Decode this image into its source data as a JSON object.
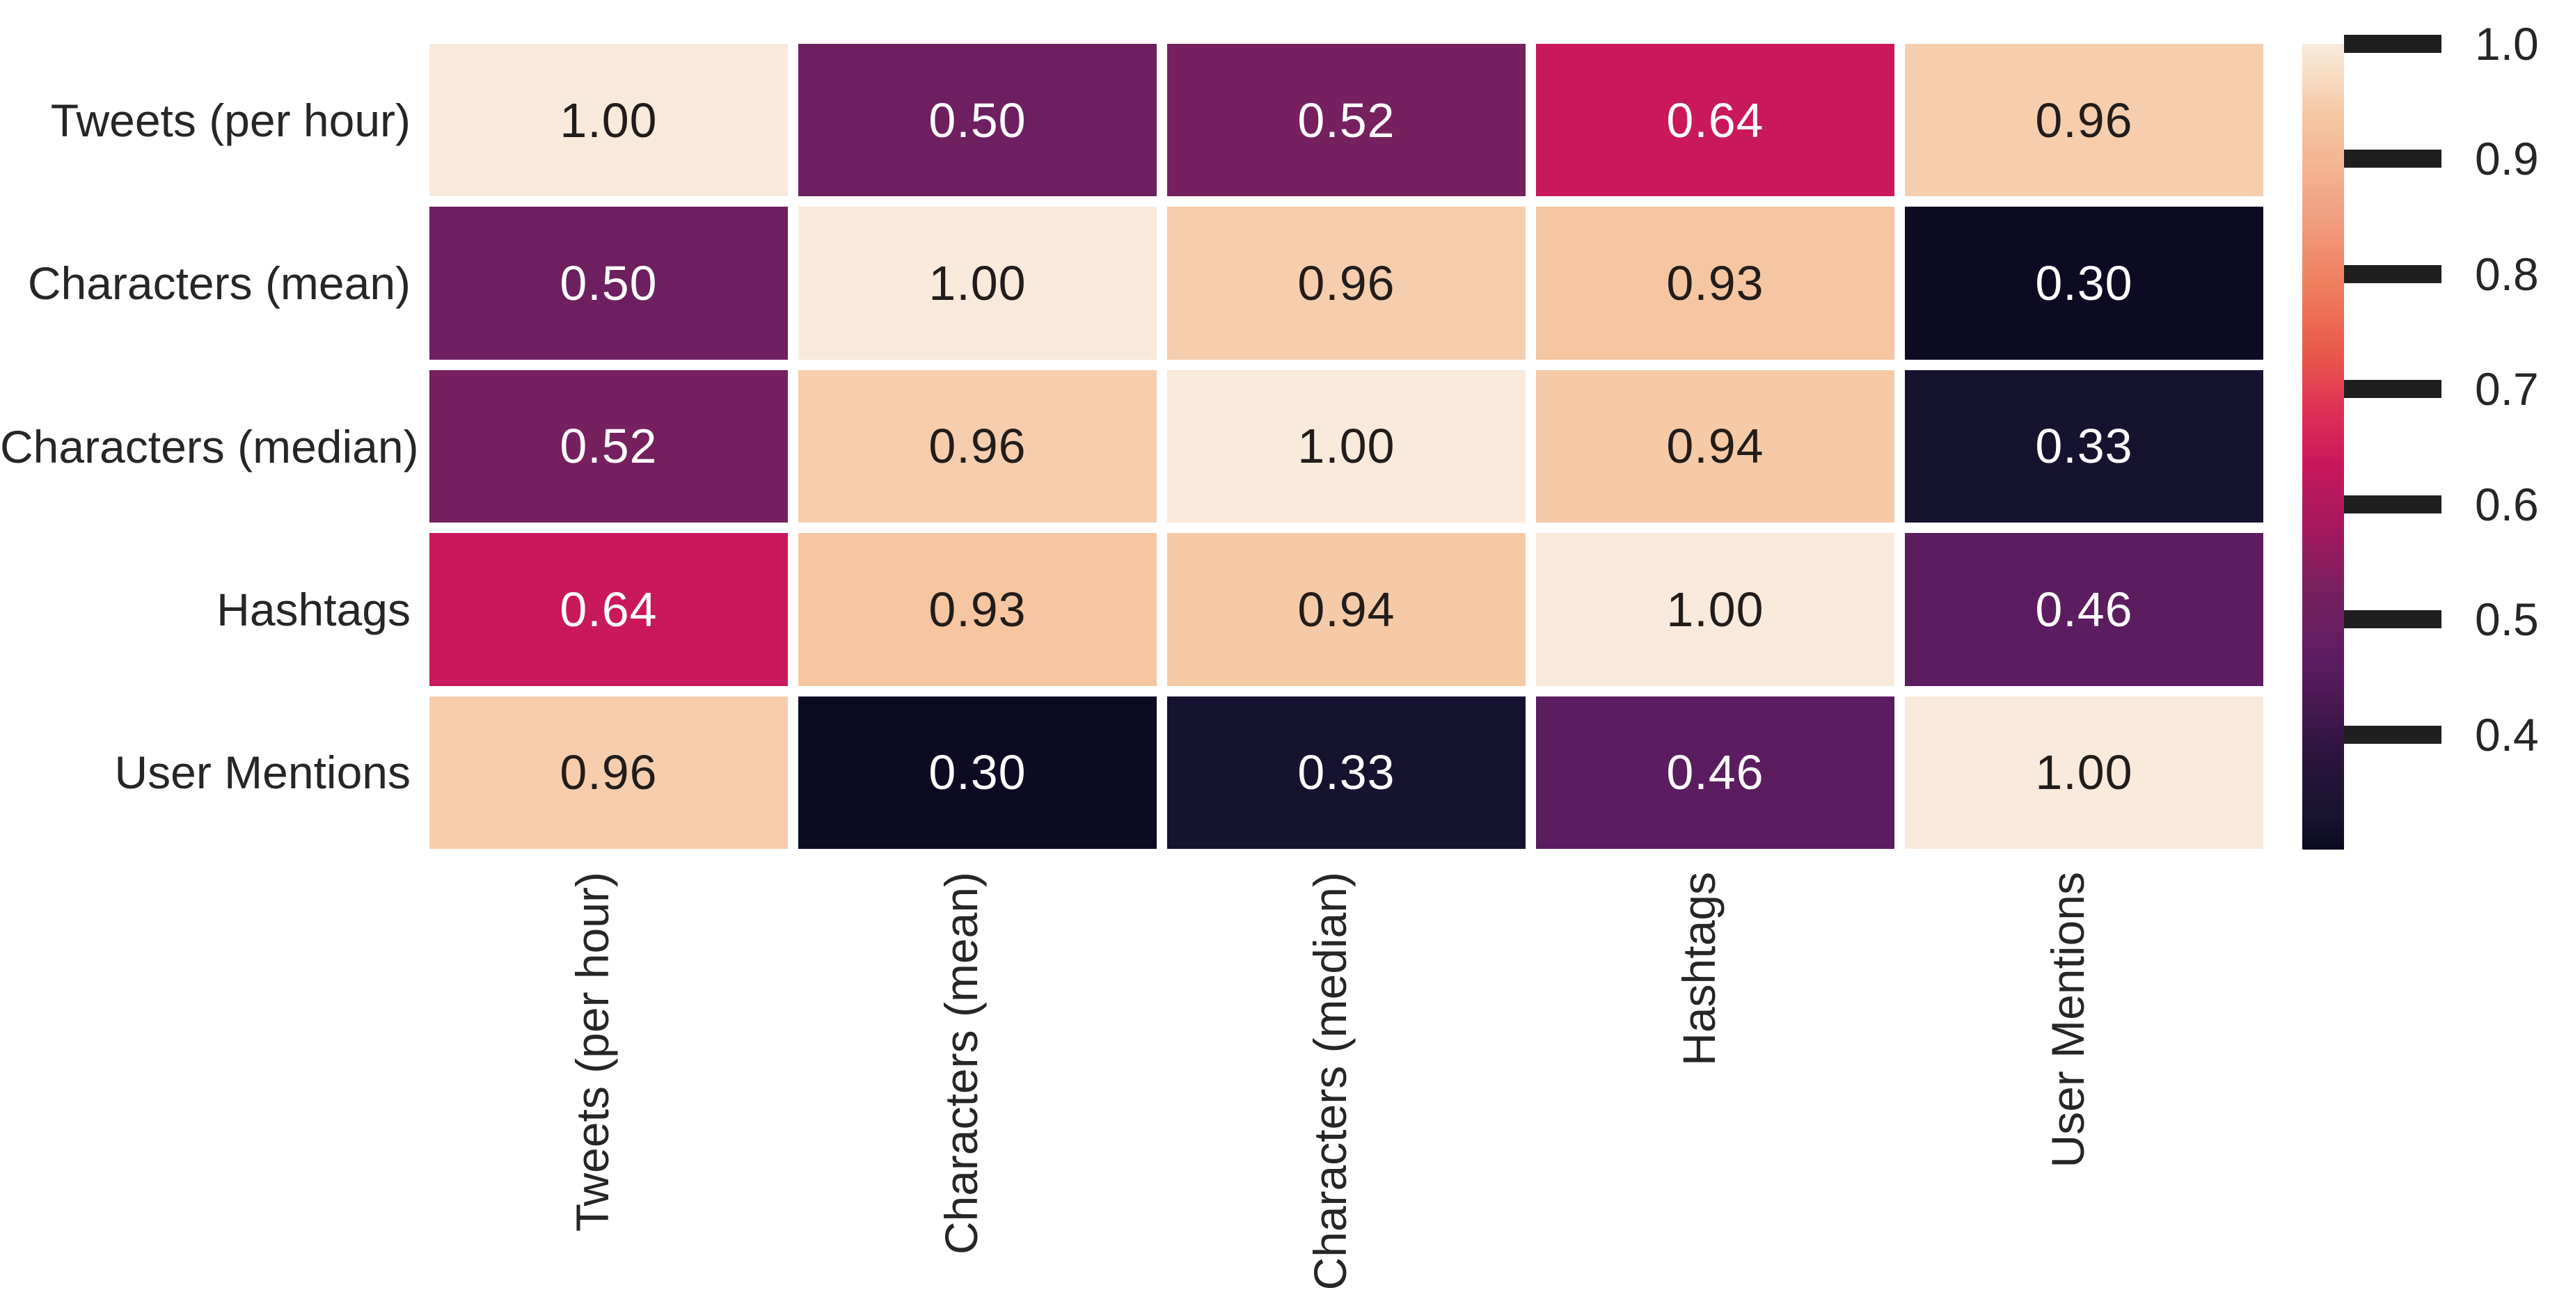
{
  "figure": {
    "background": "#ffffff",
    "text_color": "#262626",
    "description": "correlation heatmap of tweet statistics"
  },
  "chart_data": {
    "type": "heatmap",
    "title": "",
    "xlabel": "",
    "ylabel": "",
    "categories": [
      "Tweets (per hour)",
      "Characters (mean)",
      "Characters (median)",
      "Hashtags",
      "User Mentions"
    ],
    "matrix": [
      [
        1.0,
        0.5,
        0.52,
        0.64,
        0.96
      ],
      [
        0.5,
        1.0,
        0.96,
        0.93,
        0.3
      ],
      [
        0.52,
        0.96,
        1.0,
        0.94,
        0.33
      ],
      [
        0.64,
        0.93,
        0.94,
        1.0,
        0.46
      ],
      [
        0.96,
        0.3,
        0.33,
        0.46,
        1.0
      ]
    ],
    "cell_labels": [
      [
        "1.00",
        "0.50",
        "0.52",
        "0.64",
        "0.96"
      ],
      [
        "0.50",
        "1.00",
        "0.96",
        "0.93",
        "0.30"
      ],
      [
        "0.52",
        "0.96",
        "1.00",
        "0.94",
        "0.33"
      ],
      [
        "0.64",
        "0.93",
        "0.94",
        "1.00",
        "0.46"
      ],
      [
        "0.96",
        "0.30",
        "0.33",
        "0.46",
        "1.00"
      ]
    ],
    "grid": {
      "on": false,
      "gap_color": "#ffffff"
    },
    "colormap": {
      "name": "rocket",
      "value_colors": {
        "1.00": "#faeadc",
        "0.96": "#f6ceae",
        "0.94": "#f6caa7",
        "0.93": "#f5c6a1",
        "0.64": "#c9185c",
        "0.52": "#76205f",
        "0.50": "#6e1f60",
        "0.46": "#5c1c60",
        "0.33": "#161330",
        "0.30": "#0d0b24"
      },
      "annot_dark": "#221d1a",
      "annot_light": "#ffffff",
      "light_text_threshold": 0.75
    },
    "colorbar": {
      "position": "right",
      "vmin": 0.3,
      "vmax": 1.0,
      "tick_values": [
        1.0,
        0.9,
        0.8,
        0.7,
        0.6,
        0.5,
        0.4
      ],
      "tick_labels": [
        "1.0",
        "0.9",
        "0.8",
        "0.7",
        "0.6",
        "0.5",
        "0.4"
      ],
      "tick_color": "#1f1f1f",
      "gradient_top_to_bottom": [
        [
          "#faebdd",
          0
        ],
        [
          "#f5c7a2",
          9
        ],
        [
          "#f2a487",
          20
        ],
        [
          "#ef7e5e",
          30
        ],
        [
          "#ea5a4b",
          38
        ],
        [
          "#dc2f55",
          46
        ],
        [
          "#c9185c",
          52
        ],
        [
          "#a6175f",
          60
        ],
        [
          "#76205f",
          68
        ],
        [
          "#5c1c60",
          77
        ],
        [
          "#2e143e",
          88
        ],
        [
          "#161330",
          96
        ],
        [
          "#0a0820",
          100
        ]
      ]
    }
  }
}
